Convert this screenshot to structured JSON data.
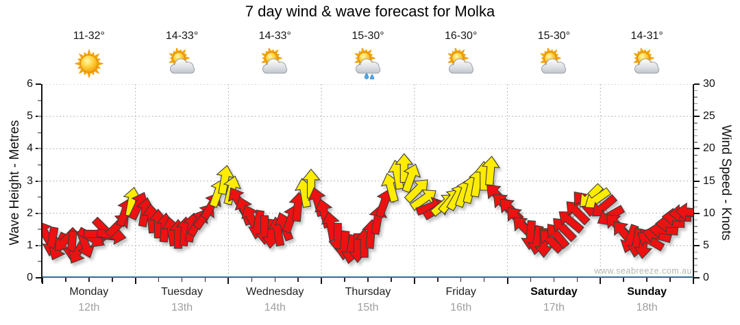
{
  "title": "7 day wind & wave forecast for Molka",
  "watermark": "www.seabreeze.com.au",
  "left_axis": {
    "label": "Wave Height - Metres",
    "ticks": [
      0,
      1,
      2,
      3,
      4,
      5,
      6
    ],
    "max": 6
  },
  "right_axis": {
    "label": "Wind Speed - Knots",
    "ticks": [
      0,
      5,
      10,
      15,
      20,
      25,
      30
    ],
    "max": 30
  },
  "days": [
    {
      "name": "Monday",
      "date": "12th",
      "temp": "11-32°",
      "icon": "sunny",
      "bold": false
    },
    {
      "name": "Tuesday",
      "date": "13th",
      "temp": "14-33°",
      "icon": "partly-cloudy",
      "bold": false
    },
    {
      "name": "Wednesday",
      "date": "14th",
      "temp": "14-33°",
      "icon": "partly-cloudy",
      "bold": false
    },
    {
      "name": "Thursday",
      "date": "15th",
      "temp": "15-30°",
      "icon": "showers",
      "bold": false
    },
    {
      "name": "Friday",
      "date": "16th",
      "temp": "16-30°",
      "icon": "partly-cloudy",
      "bold": false
    },
    {
      "name": "Saturday",
      "date": "17th",
      "temp": "15-30°",
      "icon": "partly-cloudy",
      "bold": true
    },
    {
      "name": "Sunday",
      "date": "18th",
      "temp": "14-31°",
      "icon": "partly-cloudy",
      "bold": true
    }
  ],
  "chart_data": {
    "type": "scatter",
    "subtype": "wind-arrows",
    "unit": "knots",
    "ylim": [
      0,
      30
    ],
    "wave_axis_equivalent_metres": [
      0,
      6
    ],
    "grid": {
      "horizontal_metres": [
        1,
        2,
        3,
        4,
        5,
        6
      ],
      "vertical": "day-boundaries"
    },
    "colors": {
      "light_wind": "#ee1111",
      "moderate_wind": "#ffec00",
      "arrow_outline": "#3c3c3c",
      "trend_line": "#9a9a9a"
    },
    "note": "each point = [wind_speed_knots, direction_deg_clockwise_from_up, color r|y]",
    "series": [
      {
        "day": "Monday",
        "points": [
          [
            6.8,
            330,
            "r"
          ],
          [
            5.6,
            190,
            "r"
          ],
          [
            4.8,
            205,
            "r"
          ],
          [
            5.8,
            225,
            "r"
          ],
          [
            5.0,
            185,
            "r"
          ],
          [
            4.2,
            210,
            "r"
          ],
          [
            5.2,
            160,
            "r"
          ],
          [
            6.2,
            120,
            "r"
          ],
          [
            6.8,
            90,
            "r"
          ],
          [
            7.4,
            135,
            "r"
          ],
          [
            6.6,
            100,
            "r"
          ],
          [
            8.2,
            45,
            "r"
          ],
          [
            10.2,
            20,
            "r"
          ],
          [
            11.8,
            10,
            "y"
          ]
        ]
      },
      {
        "day": "Tuesday",
        "points": [
          [
            11.2,
            25,
            "r"
          ],
          [
            10.2,
            10,
            "r"
          ],
          [
            9.2,
            355,
            "r"
          ],
          [
            8.4,
            0,
            "r"
          ],
          [
            7.8,
            5,
            "r"
          ],
          [
            7.2,
            350,
            "r"
          ],
          [
            6.8,
            0,
            "r"
          ],
          [
            7.2,
            5,
            "r"
          ],
          [
            7.8,
            10,
            "r"
          ],
          [
            8.6,
            30,
            "r"
          ],
          [
            9.6,
            35,
            "r"
          ],
          [
            11.2,
            30,
            "r"
          ],
          [
            13.2,
            20,
            "y"
          ],
          [
            15.2,
            10,
            "y"
          ]
        ]
      },
      {
        "day": "Wednesday",
        "points": [
          [
            13.6,
            15,
            "y"
          ],
          [
            12.0,
            330,
            "r"
          ],
          [
            10.4,
            340,
            "r"
          ],
          [
            9.2,
            335,
            "r"
          ],
          [
            8.2,
            190,
            "r"
          ],
          [
            7.4,
            180,
            "r"
          ],
          [
            6.8,
            185,
            "r"
          ],
          [
            7.2,
            350,
            "r"
          ],
          [
            8.0,
            340,
            "r"
          ],
          [
            9.2,
            20,
            "r"
          ],
          [
            11.0,
            5,
            "r"
          ],
          [
            13.2,
            350,
            "y"
          ],
          [
            14.6,
            0,
            "y"
          ],
          [
            11.8,
            345,
            "r"
          ]
        ]
      },
      {
        "day": "Thursday",
        "points": [
          [
            10.0,
            345,
            "r"
          ],
          [
            8.0,
            350,
            "r"
          ],
          [
            6.2,
            180,
            "r"
          ],
          [
            5.0,
            185,
            "r"
          ],
          [
            4.4,
            190,
            "r"
          ],
          [
            4.6,
            180,
            "r"
          ],
          [
            5.4,
            0,
            "r"
          ],
          [
            6.8,
            5,
            "r"
          ],
          [
            9.0,
            10,
            "r"
          ],
          [
            11.6,
            20,
            "r"
          ],
          [
            14.0,
            345,
            "y"
          ],
          [
            16.0,
            350,
            "y"
          ],
          [
            17.0,
            0,
            "y"
          ],
          [
            15.5,
            20,
            "y"
          ]
        ]
      },
      {
        "day": "Friday",
        "points": [
          [
            13.6,
            45,
            "y"
          ],
          [
            12.2,
            55,
            "y"
          ],
          [
            11.0,
            70,
            "r"
          ],
          [
            10.6,
            60,
            "r"
          ],
          [
            11.4,
            50,
            "y"
          ],
          [
            12.0,
            40,
            "y"
          ],
          [
            12.6,
            30,
            "y"
          ],
          [
            13.2,
            20,
            "y"
          ],
          [
            13.8,
            15,
            "y"
          ],
          [
            14.8,
            10,
            "y"
          ],
          [
            15.8,
            0,
            "y"
          ],
          [
            16.6,
            5,
            "y"
          ],
          [
            12.8,
            315,
            "r"
          ],
          [
            11.4,
            315,
            "r"
          ]
        ]
      },
      {
        "day": "Saturday",
        "points": [
          [
            10.6,
            315,
            "r"
          ],
          [
            9.2,
            320,
            "r"
          ],
          [
            7.8,
            315,
            "r"
          ],
          [
            6.6,
            185,
            "r"
          ],
          [
            5.8,
            190,
            "r"
          ],
          [
            5.4,
            180,
            "r"
          ],
          [
            5.8,
            315,
            "r"
          ],
          [
            6.6,
            320,
            "r"
          ],
          [
            7.6,
            315,
            "r"
          ],
          [
            8.8,
            310,
            "r"
          ],
          [
            10.2,
            315,
            "r"
          ],
          [
            11.6,
            320,
            "r"
          ],
          [
            12.6,
            225,
            "y"
          ],
          [
            12.2,
            235,
            "y"
          ]
        ]
      },
      {
        "day": "Sunday",
        "points": [
          [
            11.0,
            230,
            "r"
          ],
          [
            9.6,
            240,
            "r"
          ],
          [
            8.2,
            315,
            "r"
          ],
          [
            7.0,
            320,
            "r"
          ],
          [
            6.0,
            200,
            "r"
          ],
          [
            5.4,
            190,
            "r"
          ],
          [
            5.2,
            185,
            "r"
          ],
          [
            5.8,
            300,
            "r"
          ],
          [
            6.6,
            285,
            "r"
          ],
          [
            7.4,
            275,
            "r"
          ],
          [
            8.4,
            270,
            "r"
          ],
          [
            9.4,
            272,
            "r"
          ],
          [
            10.0,
            268,
            "r"
          ],
          [
            10.2,
            274,
            "r"
          ]
        ]
      }
    ]
  }
}
